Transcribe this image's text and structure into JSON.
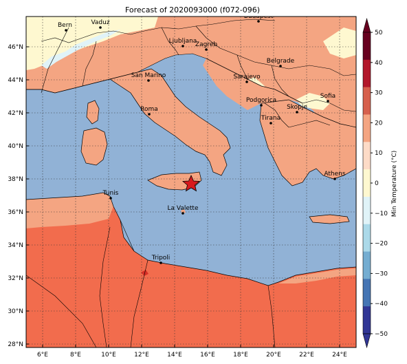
{
  "title": "Forecast of 2020093000 (f072-096)",
  "colorbar": {
    "label": "Min Temperature (°C)",
    "ticks": [
      "50",
      "40",
      "30",
      "20",
      "10",
      "0",
      "−10",
      "−20",
      "−30",
      "−40",
      "−50"
    ],
    "bands": [
      "#67001f",
      "#b2182b",
      "#d6604d",
      "#f4a582",
      "#fddbc7",
      "#fef8d0",
      "#e0f3f8",
      "#abd9e9",
      "#74add1",
      "#4575b4",
      "#313695"
    ]
  },
  "axes": {
    "lat_ticks": [
      "46°N",
      "44°N",
      "42°N",
      "40°N",
      "38°N",
      "36°N",
      "34°N",
      "32°N",
      "30°N",
      "28°N"
    ],
    "lon_ticks": [
      "6°E",
      "8°E",
      "10°E",
      "12°E",
      "14°E",
      "16°E",
      "18°E",
      "20°E",
      "22°E",
      "24°E"
    ]
  },
  "colors": {
    "sea": "#91b2d6",
    "land_warm": "#f4a582",
    "land_hot": "#f26c4d",
    "land_cool": "#fef8d0",
    "land_cold": "#e0f3f8",
    "pocket_red": "#d73027"
  },
  "cities": [
    {
      "name": "Bern"
    },
    {
      "name": "Vaduz"
    },
    {
      "name": "Budapest"
    },
    {
      "name": "Ljubljana"
    },
    {
      "name": "Zagreb"
    },
    {
      "name": "Belgrade"
    },
    {
      "name": "San Marino"
    },
    {
      "name": "Sarajevo"
    },
    {
      "name": "Sofia"
    },
    {
      "name": "Podgorica"
    },
    {
      "name": "Skopje"
    },
    {
      "name": "Roma"
    },
    {
      "name": "Tirana"
    },
    {
      "name": "Athens"
    },
    {
      "name": "Tunis"
    },
    {
      "name": "La Valette"
    },
    {
      "name": "Tripoli"
    }
  ],
  "marker": {
    "symbol": "star",
    "color": "#d7191c"
  }
}
